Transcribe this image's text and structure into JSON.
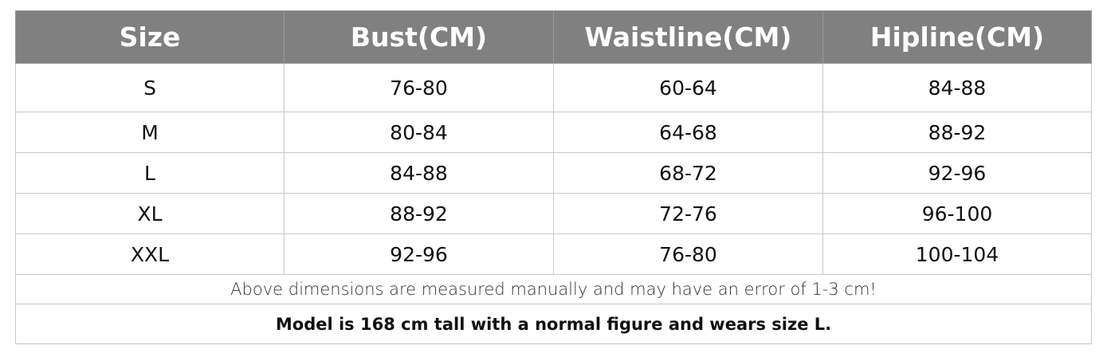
{
  "table": {
    "header": [
      "Size",
      "Bust(CM)",
      "Waistline(CM)",
      "Hipline(CM)"
    ],
    "rows": [
      [
        "S",
        "76-80",
        "60-64",
        "84-88"
      ],
      [
        "M",
        "80-84",
        "64-68",
        "88-92"
      ],
      [
        "L",
        "84-88",
        "68-72",
        "92-96"
      ],
      [
        "XL",
        "88-92",
        "72-76",
        "96-100"
      ],
      [
        "XXL",
        "92-96",
        "76-80",
        "100-104"
      ]
    ],
    "note": "Above dimensions are measured manually and may have an error of 1-3 cm!",
    "model": "Model is 168 cm tall with a normal figure and wears size L."
  }
}
